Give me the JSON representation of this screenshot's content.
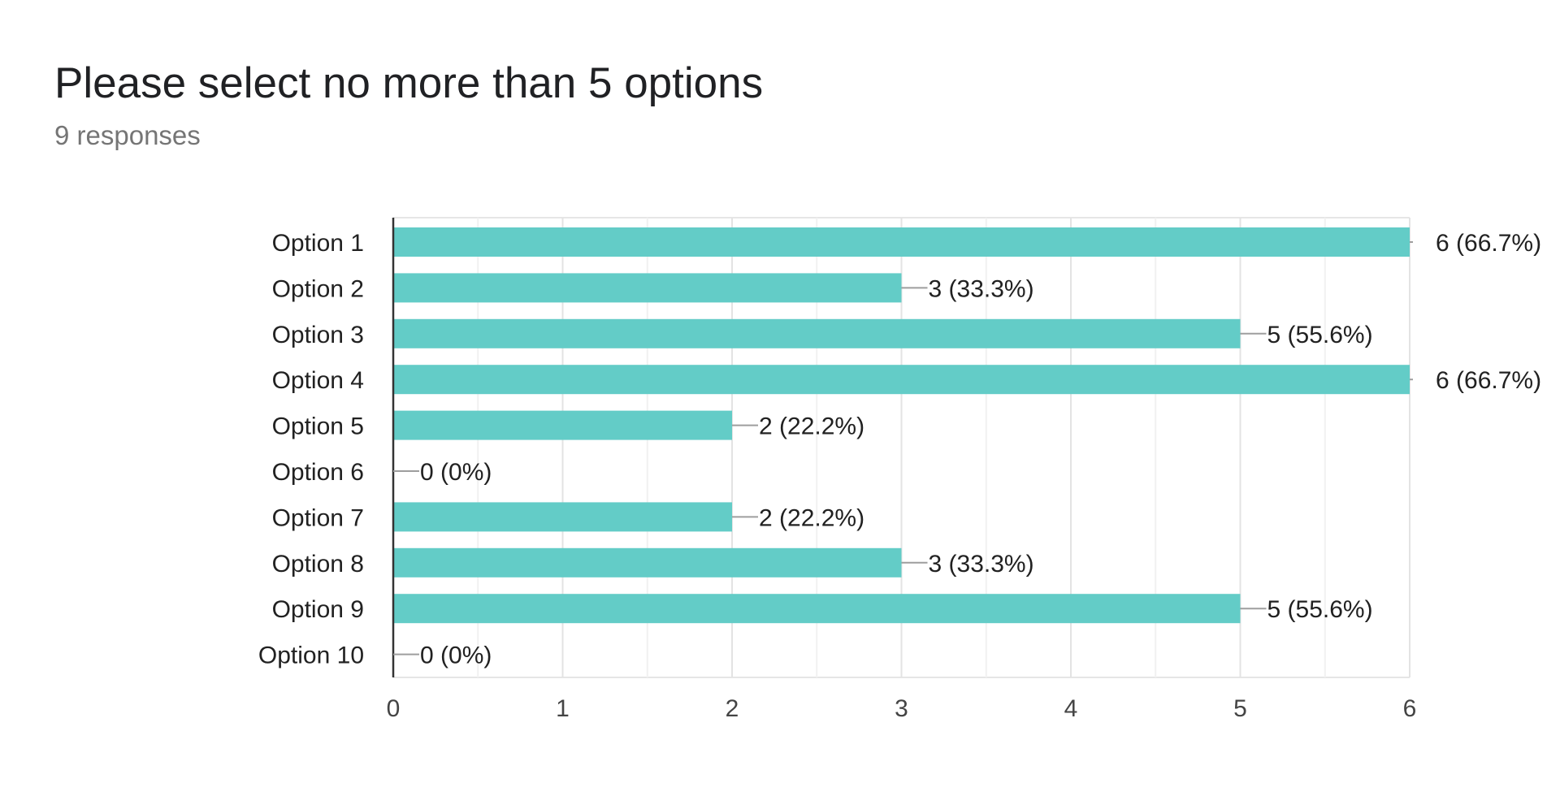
{
  "question": {
    "title": "Please select no more than 5 options",
    "responses": "9 responses"
  },
  "colors": {
    "bar": "#63ccc7",
    "grid": "#e6e6e6",
    "axis": "#333333",
    "connector": "#9e9e9e",
    "label": "#212121"
  },
  "chart_data": {
    "type": "bar",
    "orientation": "horizontal",
    "title": "Please select no more than 5 options",
    "xlabel": "",
    "ylabel": "",
    "categories": [
      "Option 1",
      "Option 2",
      "Option 3",
      "Option 4",
      "Option 5",
      "Option 6",
      "Option 7",
      "Option 8",
      "Option 9",
      "Option 10"
    ],
    "values": [
      6,
      3,
      5,
      6,
      2,
      0,
      2,
      3,
      5,
      0
    ],
    "data_labels": [
      "6 (66.7%)",
      "3 (33.3%)",
      "5 (55.6%)",
      "6 (66.7%)",
      "2 (22.2%)",
      "0 (0%)",
      "2 (22.2%)",
      "3 (33.3%)",
      "5 (55.6%)",
      "0 (0%)"
    ],
    "xlim": [
      0,
      6
    ],
    "xticks": [
      "0",
      "1",
      "2",
      "3",
      "4",
      "5",
      "6"
    ],
    "grid": true,
    "legend": "none"
  }
}
